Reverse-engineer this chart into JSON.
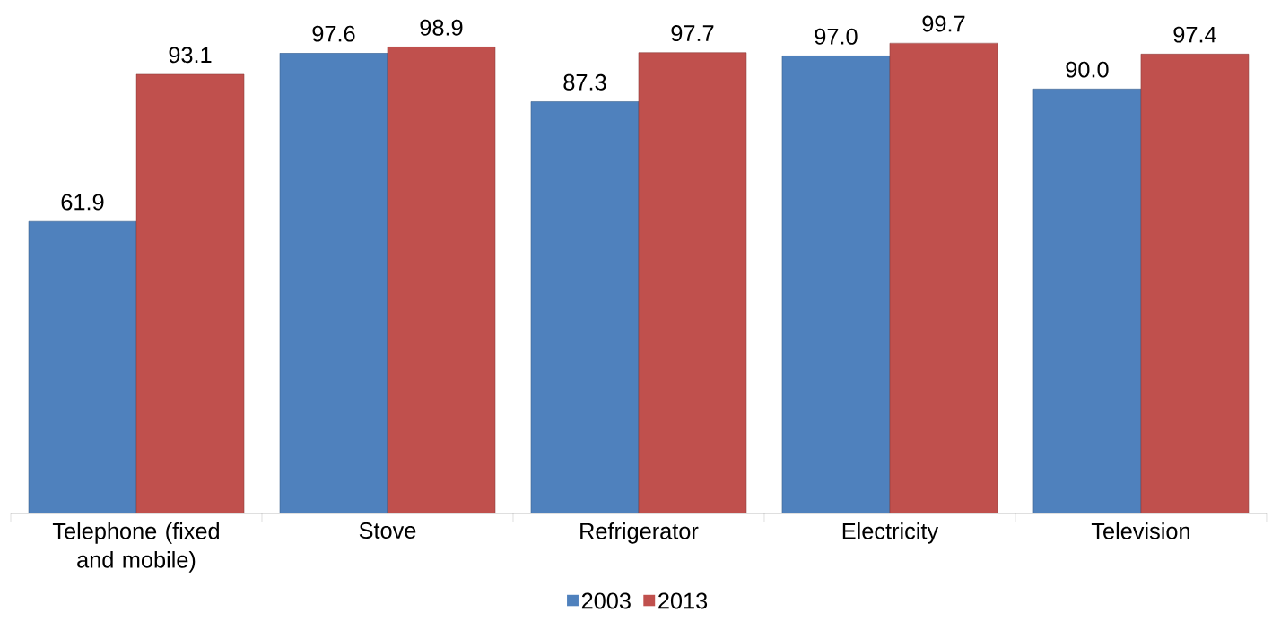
{
  "chart_data": {
    "type": "bar",
    "categories": [
      "Telephone (fixed and mobile)",
      "Stove",
      "Refrigerator",
      "Electricity",
      "Television"
    ],
    "series": [
      {
        "name": "2003",
        "color": "#4f81bd",
        "values": [
          61.9,
          97.6,
          87.3,
          97.0,
          90.0
        ],
        "value_labels": [
          "61.9",
          "97.6",
          "87.3",
          "97.0",
          "90.0"
        ]
      },
      {
        "name": "2013",
        "color": "#c0504d",
        "values": [
          93.1,
          98.9,
          97.7,
          99.7,
          97.4
        ],
        "value_labels": [
          "93.1",
          "98.9",
          "97.7",
          "99.7",
          "97.4"
        ]
      }
    ],
    "legend": "bottom",
    "grid": false
  }
}
